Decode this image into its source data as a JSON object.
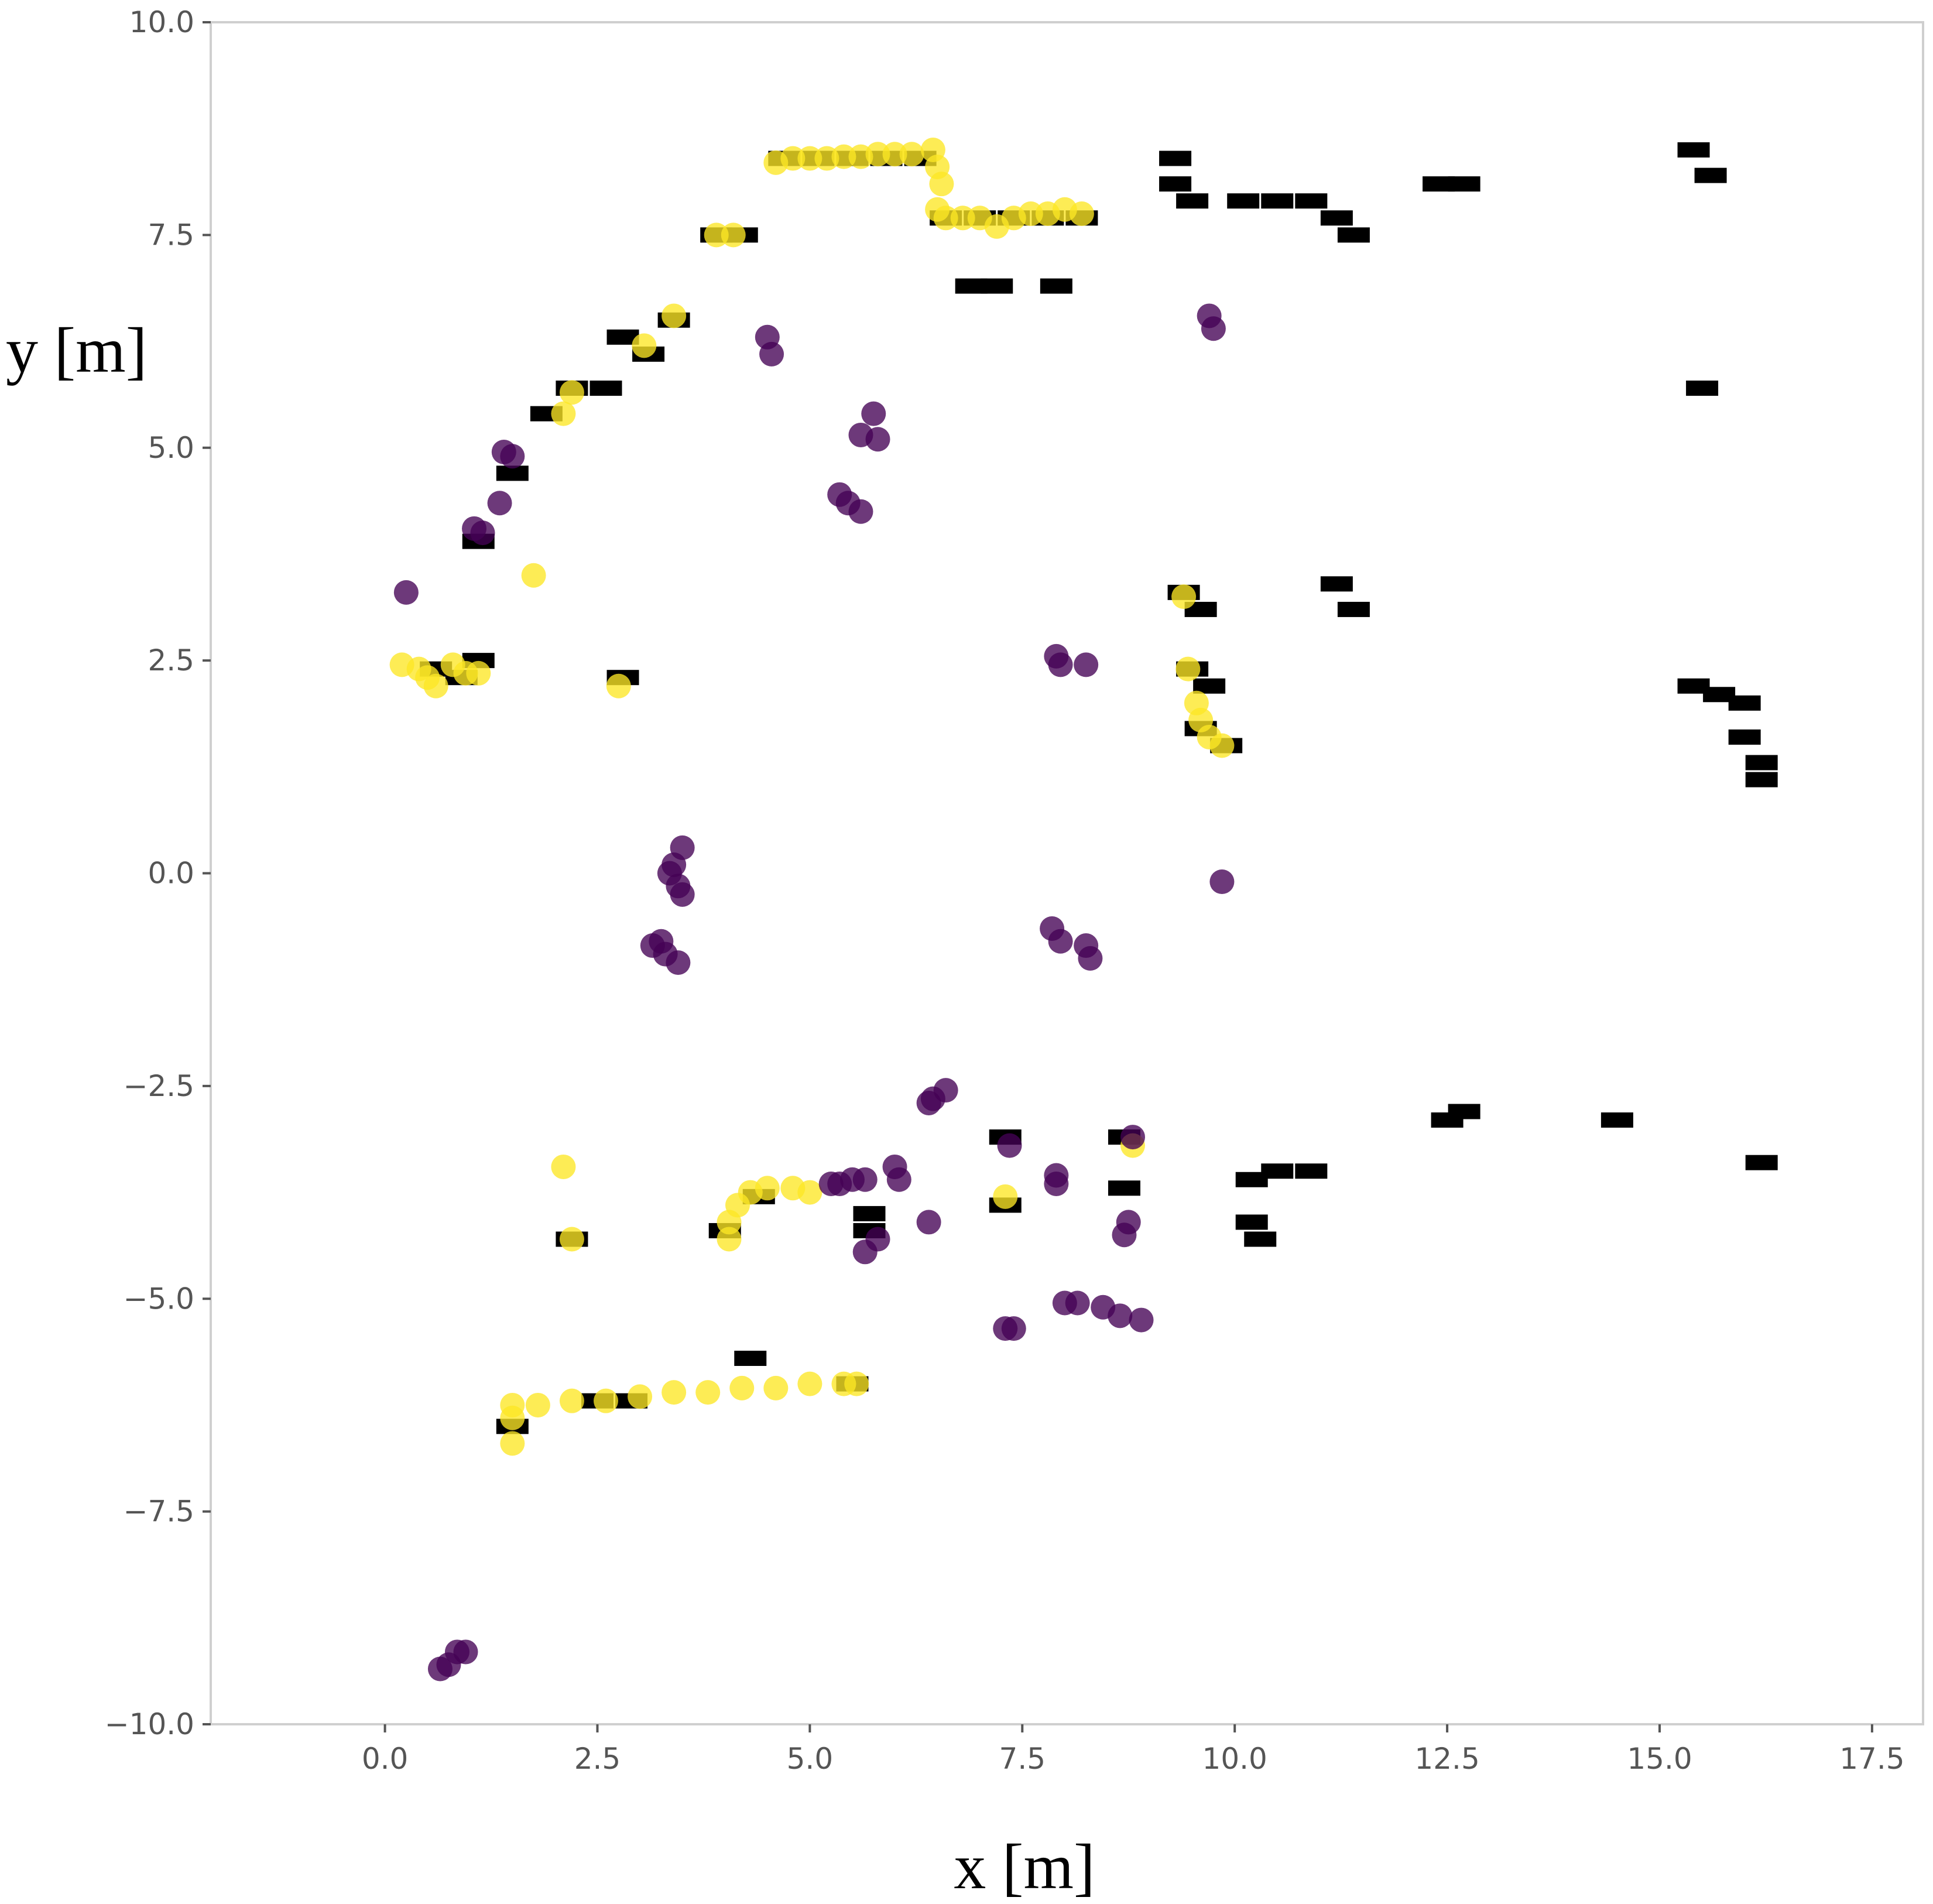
{
  "chart_data": {
    "type": "scatter",
    "title": "",
    "xlabel": "x [m]",
    "ylabel": "y [m]",
    "xlim": [
      -2.05,
      18.1
    ],
    "ylim": [
      -10.0,
      10.0
    ],
    "xticks": [
      0.0,
      2.5,
      5.0,
      7.5,
      10.0,
      12.5,
      15.0,
      17.5
    ],
    "xtick_labels": [
      "0.0",
      "2.5",
      "5.0",
      "7.5",
      "10.0",
      "12.5",
      "15.0",
      "17.5"
    ],
    "yticks": [
      10.0,
      7.5,
      5.0,
      2.5,
      0.0,
      -2.5,
      -5.0,
      -7.5,
      -10.0
    ],
    "ytick_labels": [
      "10.0",
      "7.5",
      "5.0",
      "2.5",
      "0.0",
      "−2.5",
      "−5.0",
      "−7.5",
      "−10.0"
    ],
    "grid": false,
    "colors": {
      "occupancy": "#000000",
      "yellow": "#fde725",
      "purple": "#440154",
      "frame": "#cfcfcf"
    },
    "occupancy_cells": [
      [
        4.7,
        8.4
      ],
      [
        5.1,
        8.4
      ],
      [
        5.5,
        8.4
      ],
      [
        5.9,
        8.4
      ],
      [
        6.3,
        8.4
      ],
      [
        6.6,
        7.7
      ],
      [
        7.0,
        7.7
      ],
      [
        7.4,
        7.7
      ],
      [
        7.8,
        7.7
      ],
      [
        8.2,
        7.7
      ],
      [
        6.9,
        6.9
      ],
      [
        7.2,
        6.9
      ],
      [
        7.9,
        6.9
      ],
      [
        9.3,
        8.1
      ],
      [
        9.5,
        7.9
      ],
      [
        9.3,
        8.4
      ],
      [
        10.1,
        7.9
      ],
      [
        10.5,
        7.9
      ],
      [
        10.9,
        7.9
      ],
      [
        11.2,
        7.7
      ],
      [
        11.4,
        7.5
      ],
      [
        12.4,
        8.1
      ],
      [
        12.7,
        8.1
      ],
      [
        15.4,
        8.5
      ],
      [
        15.6,
        8.2
      ],
      [
        3.9,
        7.5
      ],
      [
        4.2,
        7.5
      ],
      [
        2.8,
        6.3
      ],
      [
        3.1,
        6.1
      ],
      [
        3.4,
        6.5
      ],
      [
        1.9,
        5.4
      ],
      [
        2.2,
        5.7
      ],
      [
        2.6,
        5.7
      ],
      [
        1.5,
        4.7
      ],
      [
        1.1,
        3.9
      ],
      [
        15.5,
        5.7
      ],
      [
        9.4,
        3.3
      ],
      [
        9.6,
        3.1
      ],
      [
        11.2,
        3.4
      ],
      [
        11.4,
        3.1
      ],
      [
        0.6,
        2.4
      ],
      [
        0.9,
        2.3
      ],
      [
        1.1,
        2.5
      ],
      [
        2.8,
        2.3
      ],
      [
        9.5,
        2.4
      ],
      [
        9.7,
        2.2
      ],
      [
        9.6,
        1.7
      ],
      [
        9.9,
        1.5
      ],
      [
        15.4,
        2.2
      ],
      [
        15.7,
        2.1
      ],
      [
        16.0,
        2.0
      ],
      [
        16.0,
        1.6
      ],
      [
        16.2,
        1.3
      ],
      [
        16.2,
        1.1
      ],
      [
        12.5,
        -2.9
      ],
      [
        12.7,
        -2.8
      ],
      [
        14.5,
        -2.9
      ],
      [
        16.2,
        -3.4
      ],
      [
        7.3,
        -3.1
      ],
      [
        8.7,
        -3.1
      ],
      [
        8.7,
        -3.7
      ],
      [
        7.3,
        -3.9
      ],
      [
        10.2,
        -3.6
      ],
      [
        10.5,
        -3.5
      ],
      [
        10.9,
        -3.5
      ],
      [
        10.2,
        -4.1
      ],
      [
        10.3,
        -4.3
      ],
      [
        2.2,
        -4.3
      ],
      [
        4.0,
        -4.2
      ],
      [
        4.4,
        -3.8
      ],
      [
        5.7,
        -4.0
      ],
      [
        5.7,
        -4.2
      ],
      [
        4.3,
        -5.7
      ],
      [
        2.5,
        -6.2
      ],
      [
        2.9,
        -6.2
      ],
      [
        5.5,
        -6.0
      ],
      [
        1.5,
        -6.5
      ]
    ],
    "series": [
      {
        "name": "yellow",
        "points": [
          [
            4.6,
            8.35
          ],
          [
            4.8,
            8.4
          ],
          [
            5.0,
            8.4
          ],
          [
            5.2,
            8.4
          ],
          [
            5.4,
            8.42
          ],
          [
            5.6,
            8.42
          ],
          [
            5.8,
            8.45
          ],
          [
            6.0,
            8.45
          ],
          [
            6.2,
            8.45
          ],
          [
            6.45,
            8.5
          ],
          [
            6.5,
            8.3
          ],
          [
            6.55,
            8.1
          ],
          [
            6.5,
            7.8
          ],
          [
            6.6,
            7.7
          ],
          [
            6.8,
            7.7
          ],
          [
            7.0,
            7.7
          ],
          [
            7.2,
            7.6
          ],
          [
            7.4,
            7.7
          ],
          [
            7.6,
            7.75
          ],
          [
            7.8,
            7.75
          ],
          [
            8.0,
            7.8
          ],
          [
            8.2,
            7.75
          ],
          [
            3.9,
            7.5
          ],
          [
            4.1,
            7.5
          ],
          [
            3.4,
            6.55
          ],
          [
            3.05,
            6.2
          ],
          [
            2.2,
            5.65
          ],
          [
            2.1,
            5.4
          ],
          [
            1.75,
            3.5
          ],
          [
            0.2,
            2.45
          ],
          [
            0.4,
            2.4
          ],
          [
            0.5,
            2.3
          ],
          [
            0.6,
            2.2
          ],
          [
            0.8,
            2.45
          ],
          [
            0.95,
            2.35
          ],
          [
            1.1,
            2.35
          ],
          [
            2.75,
            2.2
          ],
          [
            9.4,
            3.25
          ],
          [
            9.45,
            2.4
          ],
          [
            9.55,
            2.0
          ],
          [
            9.6,
            1.8
          ],
          [
            9.7,
            1.6
          ],
          [
            9.85,
            1.5
          ],
          [
            2.1,
            -3.45
          ],
          [
            2.2,
            -4.3
          ],
          [
            4.05,
            -4.3
          ],
          [
            4.05,
            -4.1
          ],
          [
            4.15,
            -3.9
          ],
          [
            4.3,
            -3.75
          ],
          [
            4.5,
            -3.7
          ],
          [
            4.8,
            -3.7
          ],
          [
            5.0,
            -3.75
          ],
          [
            7.3,
            -3.8
          ],
          [
            8.8,
            -3.2
          ],
          [
            1.5,
            -6.7
          ],
          [
            1.5,
            -6.4
          ],
          [
            1.5,
            -6.25
          ],
          [
            1.8,
            -6.25
          ],
          [
            2.2,
            -6.2
          ],
          [
            2.6,
            -6.2
          ],
          [
            3.0,
            -6.15
          ],
          [
            3.4,
            -6.1
          ],
          [
            3.8,
            -6.1
          ],
          [
            4.2,
            -6.05
          ],
          [
            4.6,
            -6.05
          ],
          [
            5.0,
            -6.0
          ],
          [
            5.4,
            -6.0
          ],
          [
            5.55,
            -6.0
          ]
        ]
      },
      {
        "name": "purple",
        "points": [
          [
            4.5,
            6.3
          ],
          [
            4.55,
            6.1
          ],
          [
            9.7,
            6.55
          ],
          [
            9.75,
            6.4
          ],
          [
            5.75,
            5.4
          ],
          [
            5.6,
            5.15
          ],
          [
            5.8,
            5.1
          ],
          [
            5.35,
            4.45
          ],
          [
            5.45,
            4.35
          ],
          [
            5.6,
            4.25
          ],
          [
            1.4,
            4.95
          ],
          [
            1.5,
            4.9
          ],
          [
            1.35,
            4.35
          ],
          [
            1.05,
            4.05
          ],
          [
            1.15,
            4.0
          ],
          [
            0.25,
            3.3
          ],
          [
            7.9,
            2.55
          ],
          [
            7.95,
            2.45
          ],
          [
            8.25,
            2.45
          ],
          [
            3.5,
            0.3
          ],
          [
            3.4,
            0.1
          ],
          [
            3.35,
            0.0
          ],
          [
            3.45,
            -0.15
          ],
          [
            3.5,
            -0.25
          ],
          [
            9.85,
            -0.1
          ],
          [
            3.15,
            -0.85
          ],
          [
            3.25,
            -0.8
          ],
          [
            3.3,
            -0.95
          ],
          [
            3.45,
            -1.05
          ],
          [
            7.85,
            -0.65
          ],
          [
            7.95,
            -0.8
          ],
          [
            8.25,
            -0.85
          ],
          [
            8.3,
            -1.0
          ],
          [
            6.6,
            -2.55
          ],
          [
            6.45,
            -2.65
          ],
          [
            6.4,
            -2.7
          ],
          [
            7.35,
            -3.2
          ],
          [
            6.0,
            -3.45
          ],
          [
            6.05,
            -3.6
          ],
          [
            5.5,
            -3.6
          ],
          [
            5.35,
            -3.65
          ],
          [
            5.25,
            -3.65
          ],
          [
            5.65,
            -3.6
          ],
          [
            7.9,
            -3.55
          ],
          [
            7.9,
            -3.65
          ],
          [
            8.8,
            -3.1
          ],
          [
            6.4,
            -4.1
          ],
          [
            5.8,
            -4.3
          ],
          [
            5.65,
            -4.45
          ],
          [
            8.75,
            -4.1
          ],
          [
            8.7,
            -4.25
          ],
          [
            8.0,
            -5.05
          ],
          [
            8.15,
            -5.05
          ],
          [
            8.45,
            -5.1
          ],
          [
            8.65,
            -5.2
          ],
          [
            8.9,
            -5.25
          ],
          [
            7.4,
            -5.35
          ],
          [
            7.3,
            -5.35
          ],
          [
            0.85,
            -9.15
          ],
          [
            0.95,
            -9.15
          ],
          [
            0.75,
            -9.3
          ],
          [
            0.65,
            -9.35
          ]
        ]
      }
    ]
  }
}
